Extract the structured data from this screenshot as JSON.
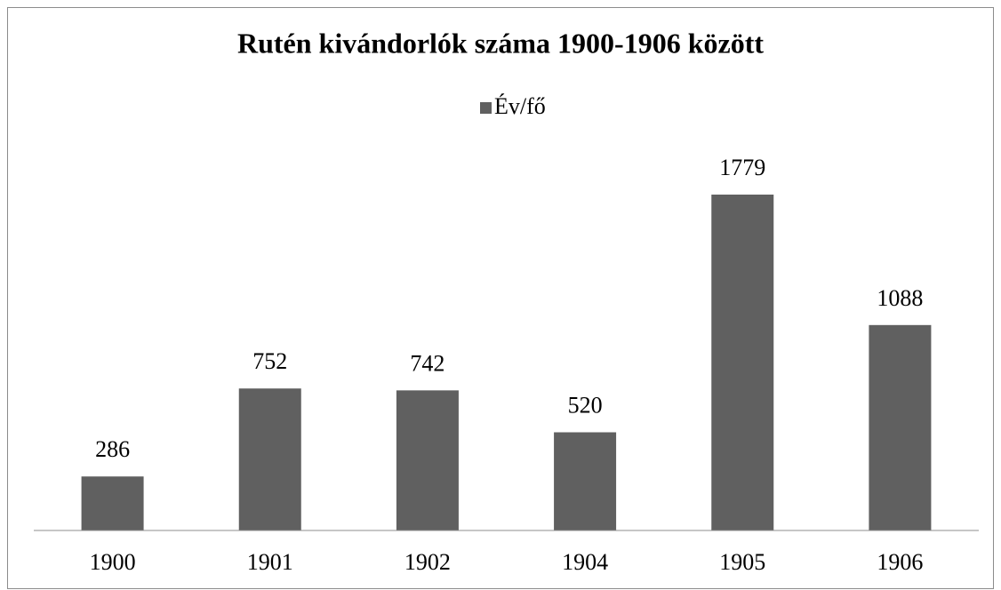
{
  "chart_data": {
    "type": "bar",
    "title": "Rutén kivándorlók száma 1900-1906 között",
    "categories": [
      "1900",
      "1901",
      "1902",
      "1904",
      "1905",
      "1906"
    ],
    "series": [
      {
        "name": "Év/fő",
        "color": "#606060",
        "values": [
          286,
          752,
          742,
          520,
          1779,
          1088
        ]
      }
    ],
    "legend": "top"
  }
}
